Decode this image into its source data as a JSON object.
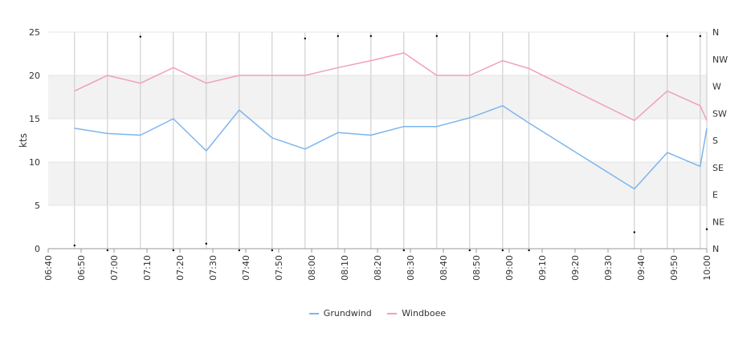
{
  "chart_data": {
    "type": "line",
    "ylabel": "kts",
    "ylim": [
      0,
      25
    ],
    "yticks": [
      0,
      5,
      10,
      15,
      20,
      25
    ],
    "x_range": [
      "06:40",
      "10:00"
    ],
    "x_tick_labels": [
      "06:40",
      "06:50",
      "07:00",
      "07:10",
      "07:20",
      "07:30",
      "07:40",
      "07:50",
      "08:00",
      "08:10",
      "08:20",
      "08:30",
      "08:40",
      "08:50",
      "09:00",
      "09:10",
      "09:20",
      "09:30",
      "09:40",
      "09:50",
      "10:00"
    ],
    "direction_ticks": [
      "N",
      "NE",
      "E",
      "SE",
      "S",
      "SW",
      "W",
      "NW",
      "N"
    ],
    "bands": [
      [
        5,
        10
      ],
      [
        15,
        20
      ]
    ],
    "band_color": "#f2f2f2",
    "grid": true,
    "legend_position": "bottom",
    "x": [
      "06:48",
      "06:58",
      "07:08",
      "07:18",
      "07:28",
      "07:38",
      "07:48",
      "07:58",
      "08:08",
      "08:18",
      "08:28",
      "08:38",
      "08:48",
      "08:58",
      "09:06",
      "09:38",
      "09:48",
      "09:58",
      "10:00"
    ],
    "series": [
      {
        "name": "Grundwind",
        "color": "#7cb5ec",
        "values": [
          13.9,
          13.3,
          13.1,
          15.0,
          11.3,
          16.0,
          12.8,
          11.5,
          13.4,
          13.1,
          14.1,
          14.1,
          15.1,
          16.5,
          14.5,
          6.9,
          11.1,
          9.5,
          13.9
        ]
      },
      {
        "name": "Windboee",
        "color": "#f19ec2",
        "values": [
          18.2,
          20.0,
          19.1,
          20.9,
          19.1,
          20.0,
          20.0,
          20.0,
          20.9,
          21.7,
          22.6,
          20.0,
          20.0,
          21.7,
          20.8,
          14.8,
          18.2,
          16.5,
          14.8
        ]
      }
    ],
    "direction_points": {
      "x": [
        "06:48",
        "06:58",
        "07:08",
        "07:18",
        "07:28",
        "07:38",
        "07:48",
        "07:58",
        "08:08",
        "08:18",
        "08:28",
        "08:38",
        "08:48",
        "08:58",
        "09:06",
        "09:38",
        "09:48",
        "09:58",
        "10:00"
      ],
      "directions_deg": [
        8,
        360,
        355,
        360,
        11,
        360,
        360,
        352,
        356,
        356,
        360,
        356,
        360,
        360,
        360,
        30,
        356,
        356,
        35
      ]
    }
  }
}
